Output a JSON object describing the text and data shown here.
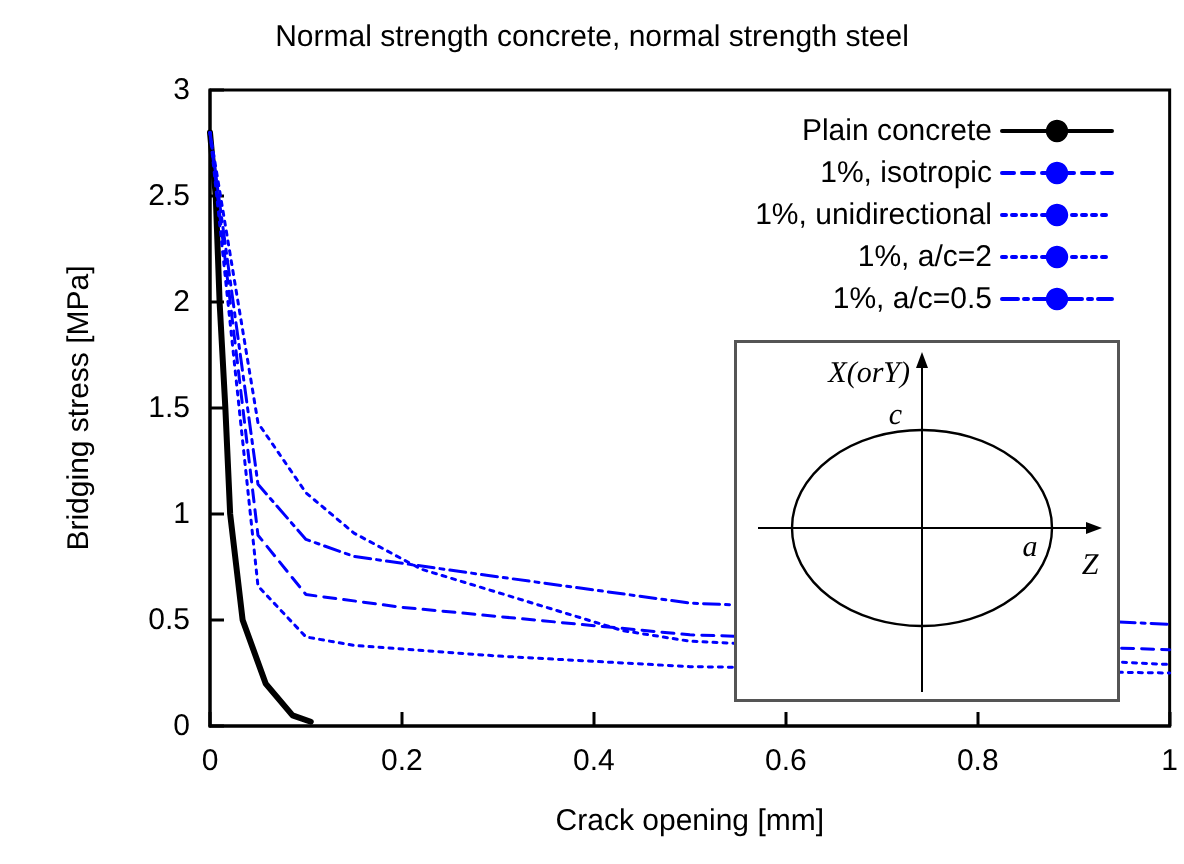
{
  "chart_data": {
    "type": "line",
    "title": "Normal strength concrete, normal strength steel",
    "xlabel": "Crack opening [mm]",
    "ylabel": "Bridging stress [MPa]",
    "annotations": [
      "X(orY)",
      "c",
      "a",
      "Z"
    ],
    "series": [
      {
        "name": "Plain concrete",
        "color": "#000000",
        "line_style": "solid",
        "x": [
          0,
          0.006,
          0.01,
          0.016,
          0.021,
          0.034,
          0.058,
          0.086,
          0.105
        ],
        "values": [
          2.8,
          2.5,
          2.0,
          1.5,
          1.0,
          0.5,
          0.2,
          0.05,
          0.02
        ]
      },
      {
        "name": "1%, isotropic",
        "color": "#0000ff",
        "line_style": "dashed",
        "x": [
          0,
          0.05,
          0.1,
          0.2,
          0.5,
          1
        ],
        "values": [
          2.8,
          0.9,
          0.62,
          0.56,
          0.43,
          0.36
        ]
      },
      {
        "name": "1%, unidirectional",
        "color": "#0000ff",
        "line_style": "dotted",
        "x": [
          0,
          0.05,
          0.1,
          0.15,
          0.22,
          0.43,
          0.5,
          1
        ],
        "values": [
          2.8,
          1.43,
          1.1,
          0.91,
          0.74,
          0.45,
          0.4,
          0.29
        ]
      },
      {
        "name": "1%, a/c=2",
        "color": "#0000ff",
        "line_style": "dotted",
        "x": [
          0,
          0.05,
          0.1,
          0.15,
          0.3,
          0.5,
          1
        ],
        "values": [
          2.8,
          0.66,
          0.42,
          0.38,
          0.33,
          0.28,
          0.25
        ]
      },
      {
        "name": "1%, a/c=0.5",
        "color": "#0000ff",
        "line_style": "dashdot",
        "x": [
          0,
          0.05,
          0.1,
          0.15,
          0.29,
          0.5,
          1
        ],
        "values": [
          2.8,
          1.14,
          0.88,
          0.8,
          0.71,
          0.58,
          0.48
        ]
      }
    ],
    "xlim": [
      0,
      1
    ],
    "xticks": [
      0,
      0.2,
      0.4,
      0.6,
      0.8,
      1
    ],
    "ylim": [
      0,
      3
    ],
    "yticks": [
      0,
      0.5,
      1,
      1.5,
      2,
      2.5,
      3
    ],
    "grid": false,
    "legend": "top right",
    "marker": "none"
  }
}
